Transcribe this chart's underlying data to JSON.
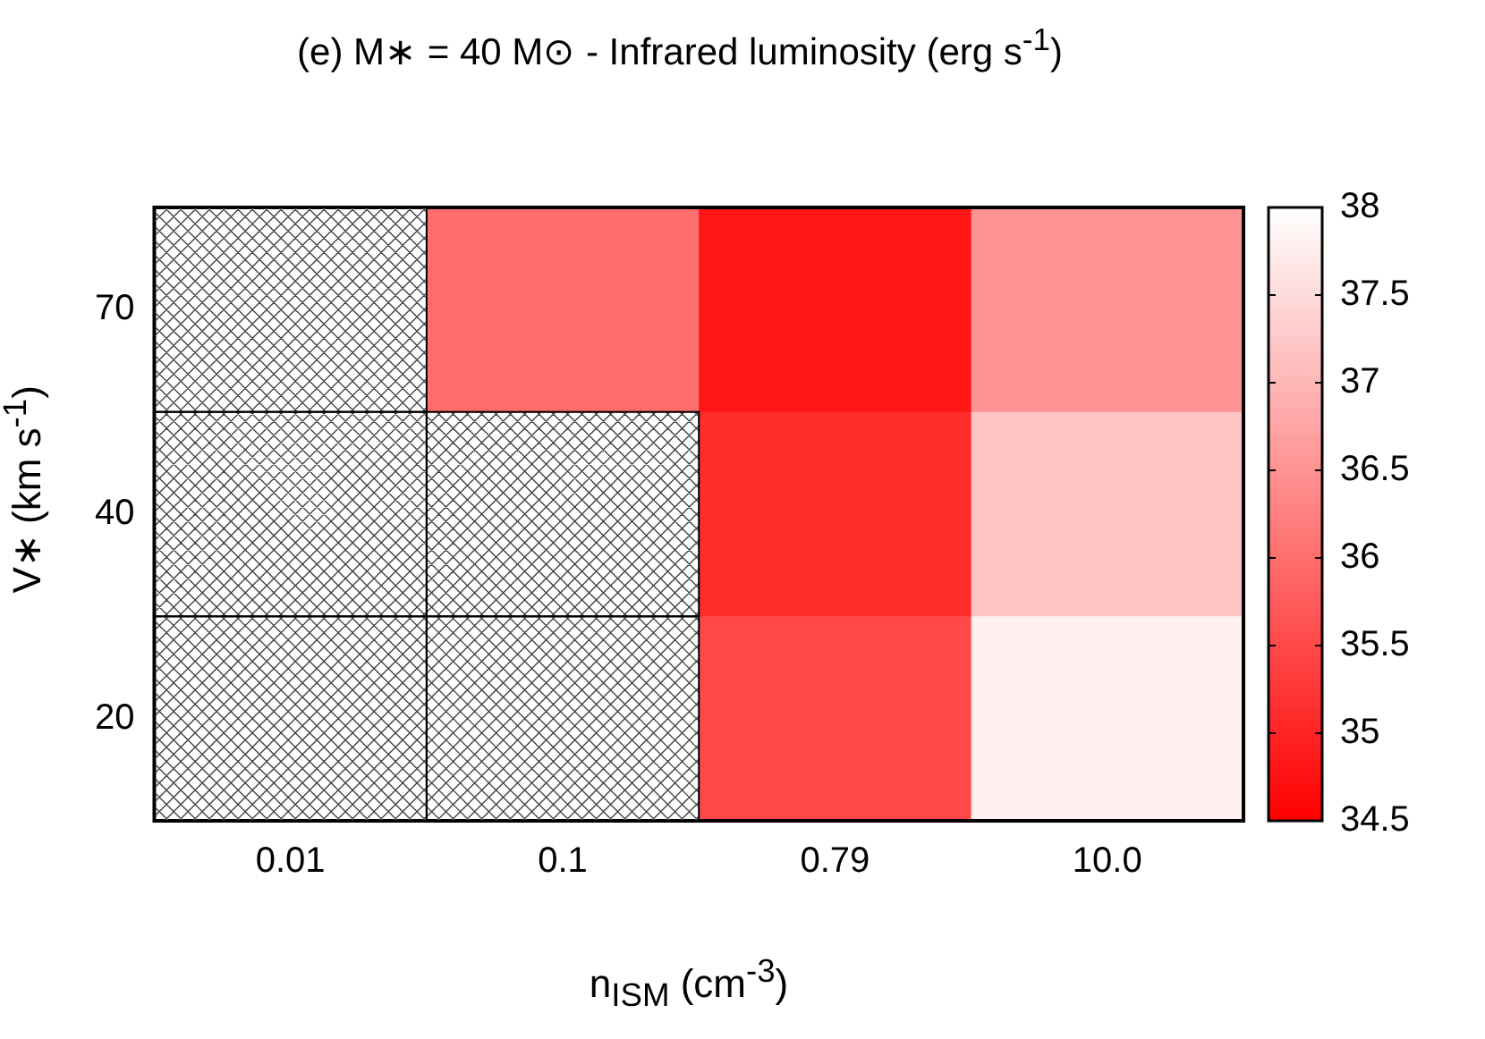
{
  "chart_data": {
    "type": "heatmap",
    "title": "(e) M∗ = 40 M⊙ - Infrared luminosity (erg s$^{-1}$)",
    "xlabel": "n$_{ISM}$ (cm$^{-3}$)",
    "ylabel": "V∗ (km s$^{-1}$)",
    "categories": [
      "0.01",
      "0.1",
      "0.79",
      "10.0"
    ],
    "y_categories": [
      "70",
      "40",
      "20"
    ],
    "cells": [
      [
        null,
        36.0,
        34.8,
        36.5
      ],
      [
        null,
        null,
        35.1,
        37.2
      ],
      [
        null,
        null,
        35.5,
        37.8
      ]
    ],
    "clim": [
      34.5,
      38
    ],
    "cticks": [
      34.5,
      35,
      35.5,
      36,
      36.5,
      37,
      37.5,
      38
    ]
  }
}
